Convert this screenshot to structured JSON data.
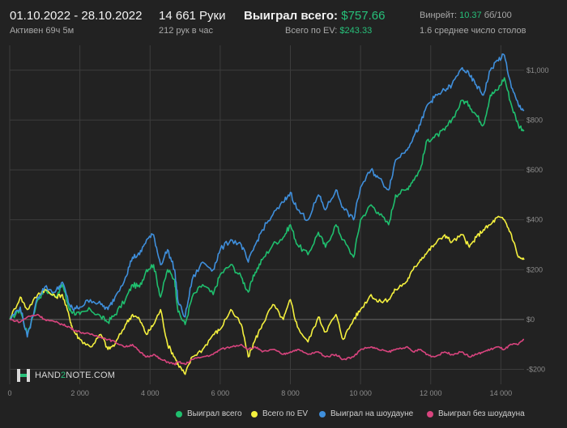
{
  "header": {
    "date_range": "01.10.2022 - 28.10.2022",
    "active_time": "Активен 69ч 5м",
    "hands": "14 661 Руки",
    "hands_per_hour": "212 рук в час",
    "won_total_label": "Выиграл всего:",
    "won_total_value": "$757.66",
    "ev_total_label": "Всего по EV:",
    "ev_total_value": "$243.33",
    "winrate_label": "Винрейт:",
    "winrate_value": "10.37",
    "winrate_unit": "бб/100",
    "avg_tables": "1.6 среднее число столов"
  },
  "logo": {
    "text_a": "HAND",
    "text_b": "2",
    "text_c": "NOTE.COM"
  },
  "colors": {
    "background": "#222222",
    "grid": "#3c3c3c",
    "zero_line": "#6a6a6a",
    "green": "#1fbf6e",
    "yellow": "#f4f03e",
    "blue": "#3f8fdc",
    "pink": "#d8447e"
  },
  "chart_data": {
    "type": "line",
    "title": "",
    "xlabel": "",
    "ylabel": "",
    "xlim": [
      0,
      14661
    ],
    "ylim": [
      -260,
      1100
    ],
    "x_ticks": [
      0,
      2000,
      4000,
      6000,
      8000,
      10000,
      12000,
      14000
    ],
    "x_tick_labels": [
      "0",
      "2 000",
      "4 000",
      "6 000",
      "8 000",
      "10 000",
      "12 000",
      "14 000"
    ],
    "y_ticks": [
      -200,
      0,
      200,
      400,
      600,
      800,
      1000
    ],
    "y_tick_labels": [
      "-$200",
      "$0",
      "$200",
      "$400",
      "$600",
      "$800",
      "$1,000"
    ],
    "grid": true,
    "legend_position": "bottom",
    "series": [
      {
        "name": "Выиграл всего",
        "color": "#1fbf6e",
        "x": [
          0,
          300,
          500,
          800,
          1000,
          1300,
          1500,
          1700,
          1800,
          2000,
          2300,
          2600,
          2800,
          3000,
          3300,
          3500,
          3700,
          3900,
          4100,
          4300,
          4500,
          4700,
          4800,
          5000,
          5200,
          5500,
          5800,
          6000,
          6300,
          6600,
          6800,
          7000,
          7200,
          7500,
          7800,
          8000,
          8200,
          8500,
          8800,
          9000,
          9300,
          9500,
          9800,
          10000,
          10300,
          10500,
          10800,
          11000,
          11300,
          11500,
          11700,
          11900,
          12100,
          12400,
          12600,
          12900,
          13100,
          13300,
          13500,
          13700,
          13900,
          14100,
          14300,
          14500,
          14661
        ],
        "y": [
          0,
          40,
          -60,
          80,
          120,
          90,
          140,
          40,
          30,
          20,
          40,
          10,
          -10,
          20,
          80,
          140,
          130,
          200,
          220,
          90,
          200,
          160,
          30,
          -20,
          90,
          140,
          100,
          180,
          220,
          170,
          110,
          190,
          240,
          300,
          330,
          380,
          300,
          260,
          350,
          290,
          380,
          320,
          250,
          400,
          460,
          430,
          380,
          500,
          520,
          560,
          600,
          720,
          730,
          760,
          800,
          880,
          860,
          820,
          780,
          900,
          920,
          970,
          860,
          780,
          760
        ]
      },
      {
        "name": "Всего по EV",
        "color": "#f4f03e",
        "x": [
          0,
          300,
          500,
          800,
          1000,
          1300,
          1500,
          1700,
          1800,
          2000,
          2300,
          2600,
          2800,
          3000,
          3300,
          3500,
          3700,
          3900,
          4100,
          4300,
          4500,
          4700,
          4800,
          5000,
          5200,
          5500,
          5800,
          6000,
          6300,
          6600,
          6800,
          7000,
          7200,
          7500,
          7800,
          8000,
          8200,
          8500,
          8800,
          9000,
          9300,
          9500,
          9800,
          10000,
          10300,
          10500,
          10800,
          11000,
          11300,
          11500,
          11700,
          11900,
          12100,
          12400,
          12600,
          12900,
          13100,
          13300,
          13500,
          13700,
          13900,
          14100,
          14300,
          14500,
          14661
        ],
        "y": [
          0,
          90,
          40,
          100,
          120,
          90,
          100,
          10,
          -40,
          -80,
          -110,
          -60,
          -120,
          -100,
          -20,
          20,
          0,
          -60,
          -20,
          40,
          -100,
          -150,
          -180,
          -220,
          -150,
          -120,
          -60,
          -40,
          40,
          -20,
          -150,
          -80,
          -20,
          60,
          0,
          80,
          -30,
          -90,
          10,
          -50,
          20,
          -80,
          0,
          40,
          100,
          70,
          80,
          120,
          150,
          200,
          240,
          270,
          300,
          340,
          310,
          340,
          290,
          330,
          360,
          380,
          410,
          400,
          340,
          250,
          240
        ]
      },
      {
        "name": "Выиграл на шоудауне",
        "color": "#3f8fdc",
        "x": [
          0,
          300,
          500,
          800,
          1000,
          1300,
          1500,
          1700,
          1800,
          2000,
          2300,
          2600,
          2800,
          3000,
          3300,
          3500,
          3700,
          3900,
          4100,
          4300,
          4500,
          4700,
          4800,
          5000,
          5200,
          5500,
          5800,
          6000,
          6300,
          6600,
          6800,
          7000,
          7200,
          7500,
          7800,
          8000,
          8200,
          8500,
          8800,
          9000,
          9300,
          9500,
          9800,
          10000,
          10300,
          10500,
          10800,
          11000,
          11300,
          11500,
          11700,
          11900,
          12100,
          12400,
          12600,
          12900,
          13100,
          13300,
          13500,
          13700,
          13900,
          14100,
          14300,
          14500,
          14661
        ],
        "y": [
          0,
          50,
          -70,
          90,
          130,
          110,
          150,
          60,
          40,
          50,
          80,
          60,
          40,
          90,
          170,
          250,
          260,
          320,
          340,
          220,
          280,
          200,
          70,
          10,
          160,
          230,
          200,
          280,
          320,
          300,
          230,
          300,
          360,
          420,
          470,
          510,
          440,
          400,
          500,
          440,
          520,
          450,
          400,
          530,
          600,
          570,
          520,
          640,
          680,
          730,
          780,
          860,
          890,
          920,
          940,
          1010,
          980,
          940,
          900,
          1000,
          1040,
          1060,
          930,
          860,
          840
        ]
      },
      {
        "name": "Выиграл без шоудауна",
        "color": "#d8447e",
        "x": [
          0,
          300,
          500,
          800,
          1000,
          1300,
          1500,
          1700,
          1800,
          2000,
          2300,
          2600,
          2800,
          3000,
          3300,
          3500,
          3700,
          3900,
          4100,
          4300,
          4500,
          4700,
          4800,
          5000,
          5200,
          5500,
          5800,
          6000,
          6300,
          6600,
          6800,
          7000,
          7200,
          7500,
          7800,
          8000,
          8200,
          8500,
          8800,
          9000,
          9300,
          9500,
          9800,
          10000,
          10300,
          10500,
          10800,
          11000,
          11300,
          11500,
          11700,
          11900,
          12100,
          12400,
          12600,
          12900,
          13100,
          13300,
          13500,
          13700,
          13900,
          14100,
          14300,
          14500,
          14661
        ],
        "y": [
          0,
          -10,
          10,
          20,
          0,
          -10,
          -20,
          -30,
          -40,
          -50,
          -60,
          -70,
          -80,
          -90,
          -110,
          -100,
          -130,
          -150,
          -140,
          -160,
          -170,
          -180,
          -170,
          -180,
          -160,
          -150,
          -140,
          -120,
          -110,
          -100,
          -120,
          -110,
          -130,
          -120,
          -140,
          -130,
          -120,
          -140,
          -130,
          -150,
          -140,
          -160,
          -150,
          -120,
          -110,
          -120,
          -130,
          -120,
          -110,
          -130,
          -120,
          -140,
          -150,
          -130,
          -140,
          -130,
          -150,
          -140,
          -130,
          -120,
          -110,
          -120,
          -100,
          -100,
          -80
        ]
      }
    ]
  }
}
